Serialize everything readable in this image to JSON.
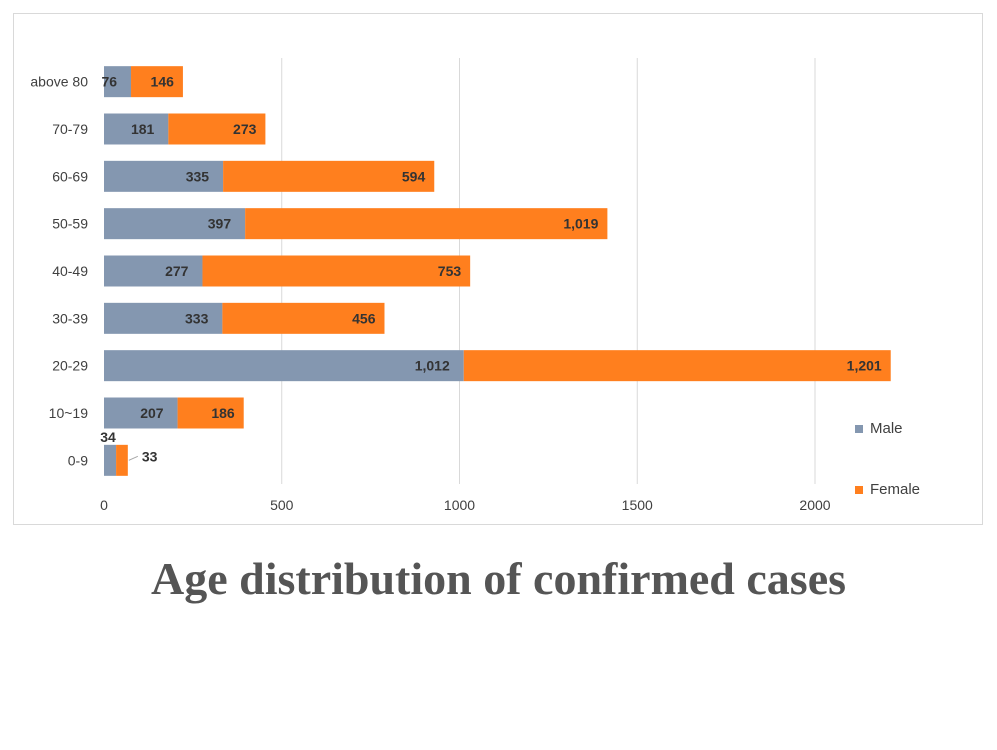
{
  "chart_data": {
    "type": "bar",
    "orientation": "horizontal",
    "stacked": true,
    "title": "Age distribution of confirmed cases",
    "categories": [
      "0-9",
      "10~19",
      "20-29",
      "30-39",
      "40-49",
      "50-59",
      "60-69",
      "70-79",
      "above 80"
    ],
    "series": [
      {
        "name": "Male",
        "color": "#8497b0",
        "values": [
          34,
          207,
          1012,
          333,
          277,
          397,
          335,
          181,
          76
        ],
        "labels": [
          "34",
          "207",
          "1,012",
          "333",
          "277",
          "397",
          "335",
          "181",
          "76"
        ]
      },
      {
        "name": "Female",
        "color": "#ff7f1e",
        "values": [
          33,
          186,
          1201,
          456,
          753,
          1019,
          594,
          273,
          146
        ],
        "labels": [
          "33",
          "186",
          "1,201",
          "456",
          "753",
          "1,019",
          "594",
          "273",
          "146"
        ]
      }
    ],
    "xlim": [
      0,
      2200
    ],
    "xticks": [
      0,
      500,
      1000,
      1500,
      2000
    ],
    "xtick_labels": [
      "0",
      "500",
      "1000",
      "1500",
      "2000"
    ],
    "grid": "vertical",
    "legend": "bottom-right"
  }
}
